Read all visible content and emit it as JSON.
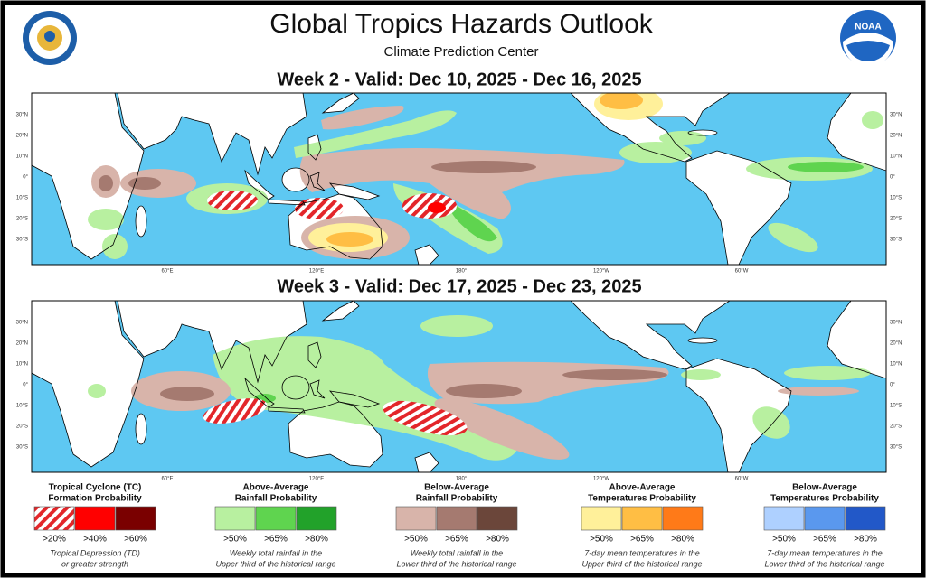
{
  "header": {
    "title": "Global Tropics Hazards Outlook",
    "subtitle": "Climate Prediction Center"
  },
  "maps": [
    {
      "heading": "Week 2 - Valid: Dec 10, 2025 - Dec 16, 2025",
      "lat_labels": [
        "30°N",
        "20°N",
        "10°N",
        "0°",
        "10°S",
        "20°S",
        "30°S"
      ],
      "lon_labels": [
        "60°E",
        "120°E",
        "180°",
        "120°W",
        "60°W"
      ]
    },
    {
      "heading": "Week 3 - Valid: Dec 17, 2025 - Dec 23, 2025",
      "lat_labels": [
        "30°N",
        "20°N",
        "10°N",
        "0°",
        "10°S",
        "20°S",
        "30°S"
      ],
      "lon_labels": [
        "60°E",
        "120°E",
        "180°",
        "120°W",
        "60°W"
      ]
    }
  ],
  "legend": [
    {
      "title": [
        "Tropical Cyclone (TC)",
        "Formation Probability"
      ],
      "items": [
        ">20%",
        ">40%",
        ">60%"
      ],
      "note": [
        "Tropical Depression (TD)",
        "or greater strength"
      ]
    },
    {
      "title": [
        "Above-Average",
        "Rainfall Probability"
      ],
      "items": [
        ">50%",
        ">65%",
        ">80%"
      ],
      "note": [
        "Weekly total rainfall in the",
        "Upper third of the historical range"
      ]
    },
    {
      "title": [
        "Below-Average",
        "Rainfall Probability"
      ],
      "items": [
        ">50%",
        ">65%",
        ">80%"
      ],
      "note": [
        "Weekly total rainfall in the",
        "Lower third of the historical range"
      ]
    },
    {
      "title": [
        "Above-Average",
        "Temperatures Probability"
      ],
      "items": [
        ">50%",
        ">65%",
        ">80%"
      ],
      "note": [
        "7-day mean temperatures in the",
        "Upper third of the historical range"
      ]
    },
    {
      "title": [
        "Below-Average",
        "Temperatures Probability"
      ],
      "items": [
        ">50%",
        ">65%",
        ">80%"
      ],
      "note": [
        "7-day mean temperatures in the",
        "Lower third of the historical range"
      ]
    }
  ]
}
